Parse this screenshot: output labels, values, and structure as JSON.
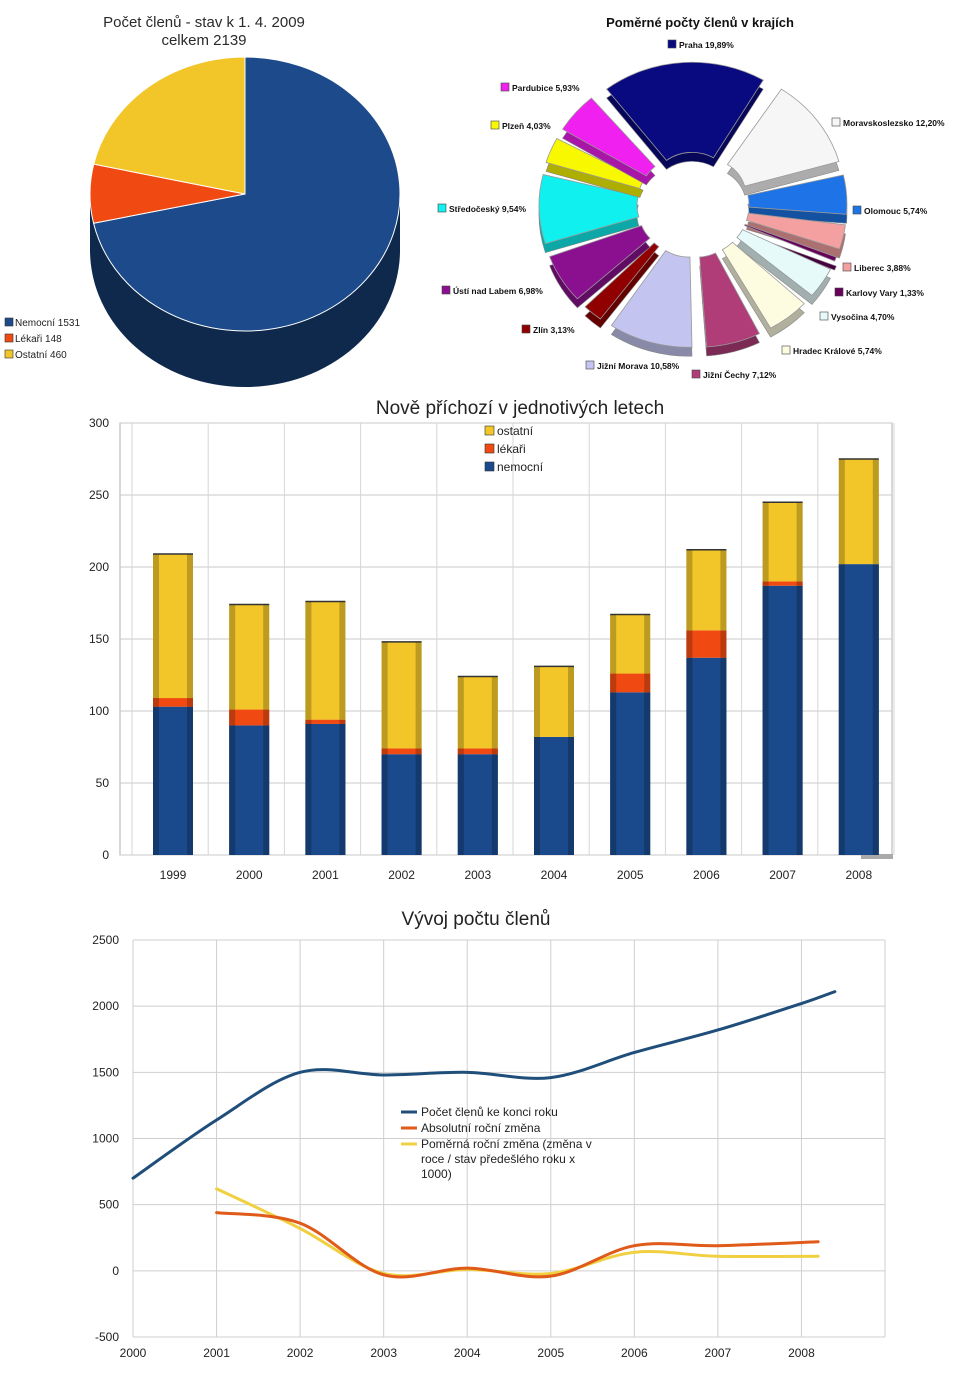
{
  "chart_data": [
    {
      "type": "pie",
      "title": "Počet členů - stav k 1. 4. 2009",
      "subtitle": "celkem 2139",
      "categories": [
        "Nemocní",
        "Lékaři",
        "Ostatní"
      ],
      "values": [
        1531,
        148,
        460
      ],
      "legend": [
        "Nemocní 1531",
        "Lékaři 148",
        "Ostatní 460"
      ],
      "colors": [
        "#1c4a8a",
        "#f04a12",
        "#f2c529"
      ],
      "legend_placement": "left"
    },
    {
      "type": "pie",
      "title": "Poměrné počty členů  v krajích",
      "categories": [
        "Praha",
        "Moravskoslezsko",
        "Olomouc",
        "Liberec",
        "Karlovy Vary",
        "Vysočina",
        "Hradec Králové",
        "Jižní Čechy",
        "Jižní Morava",
        "Zlín",
        "Ústí nad Labem",
        "Středočeský",
        "Plzeň",
        "Pardubice"
      ],
      "values": [
        19.89,
        12.2,
        5.74,
        3.88,
        1.33,
        4.7,
        5.74,
        7.12,
        10.58,
        3.13,
        6.98,
        9.54,
        4.03,
        5.93
      ],
      "labels": [
        "Praha 19,89%",
        "Moravskoslezsko 12,20%",
        "Olomouc 5,74%",
        "Liberec 3,88%",
        "Karlovy Vary 1,33%",
        "Vysočina 4,70%",
        "Hradec Králové 5,74%",
        "Jižní Čechy 7,12%",
        "Jižní Morava 10,58%",
        "Zlín 3,13%",
        "Ústí nad Labem 6,98%",
        "Středočeský 9,54%",
        "Plzeň 4,03%",
        "Pardubice 5,93%"
      ],
      "colors": [
        "#0a0a80",
        "#f6f6f6",
        "#1e73e6",
        "#f4a0a0",
        "#66005a",
        "#e6fafa",
        "#fdfbe0",
        "#b03c78",
        "#c4c4f0",
        "#900000",
        "#8a1090",
        "#10f0ee",
        "#f8f800",
        "#f020f0"
      ]
    },
    {
      "type": "bar",
      "stacked": true,
      "title": "Nově příchozí v jednotivých letech",
      "categories": [
        "1999",
        "2000",
        "2001",
        "2002",
        "2003",
        "2004",
        "2005",
        "2006",
        "2007",
        "2008"
      ],
      "series": [
        {
          "name": "nemocní",
          "values": [
            103,
            90,
            91,
            70,
            70,
            82,
            113,
            137,
            187,
            202
          ],
          "color": "#1a4a8c"
        },
        {
          "name": "lékaři",
          "values": [
            6,
            11,
            3,
            4,
            4,
            0,
            13,
            19,
            3,
            0
          ],
          "color": "#f04a12"
        },
        {
          "name": "ostatní",
          "values": [
            100,
            73,
            82,
            74,
            50,
            49,
            41,
            56,
            55,
            73
          ],
          "color": "#f2c529"
        }
      ],
      "legend_order": [
        "ostatní",
        "lékaři",
        "nemocní"
      ],
      "ylim": [
        0,
        300
      ],
      "yticks": [
        0,
        50,
        100,
        150,
        200,
        250,
        300
      ],
      "grid": true,
      "legend_placement": "top-center"
    },
    {
      "type": "line",
      "title": "Vývoj počtu členů",
      "xticks": [
        "2000",
        "2001",
        "2002",
        "2003",
        "2004",
        "2005",
        "2006",
        "2007",
        "2008"
      ],
      "ylim": [
        -500,
        2500
      ],
      "yticks": [
        "-500",
        "0",
        "500",
        "1000",
        "1500",
        "2000",
        "2500"
      ],
      "grid": true,
      "legend_placement": "center",
      "series": [
        {
          "name": "Počet členů ke konci roku",
          "color": "#1f4e7a",
          "x": [
            2000,
            2001,
            2002,
            2003,
            2004,
            2005,
            2006,
            2007,
            2008,
            2008.4
          ],
          "y": [
            700,
            1140,
            1500,
            1480,
            1500,
            1460,
            1650,
            1820,
            2020,
            2110
          ]
        },
        {
          "name": "Absolutní roční  změna",
          "color": "#e05a1a",
          "x": [
            2001,
            2002,
            2003,
            2004,
            2005,
            2006,
            2007,
            2008.2
          ],
          "y": [
            440,
            360,
            -30,
            20,
            -40,
            190,
            190,
            220
          ]
        },
        {
          "name": "Poměrná roční změna (změna v roce / stav předešlého roku x 1000)",
          "color": "#f0d040",
          "legend_lines": [
            "Poměrná roční změna (změna v",
            "roce / stav předešlého roku x",
            "1000)"
          ],
          "x": [
            2001,
            2002,
            2003,
            2004,
            2005,
            2006,
            2007,
            2008.2
          ],
          "y": [
            620,
            320,
            -20,
            10,
            -20,
            140,
            110,
            110
          ]
        }
      ]
    }
  ]
}
